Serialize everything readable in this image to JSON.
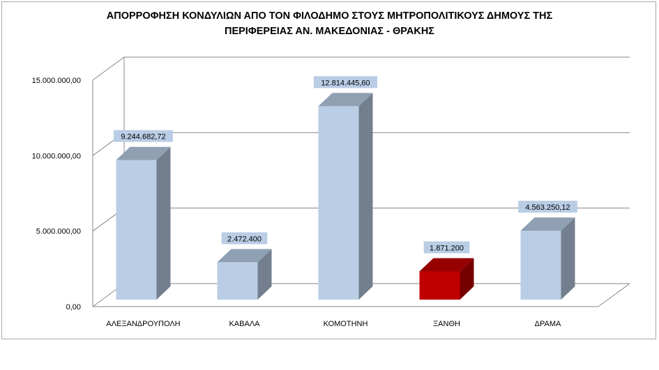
{
  "chart_data": {
    "type": "bar",
    "title": "ΑΠΟΡΡΟΦΗΣΗ ΚΟΝΔΥΛΙΩΝ ΑΠΟ ΤΟΝ ΦΙΛΟΔΗΜΟ ΣΤΟΥΣ ΜΗΤΡΟΠΟΛΙΤΙΚΟΥΣ ΔΗΜΟΥΣ ΤΗΣ ΠΕΡΙΦΕΡΕΙΑΣ ΑΝ. ΜΑΚΕΔΟΝΙΑΣ - ΘΡΑΚΗΣ",
    "title_lines": [
      "ΑΠΟΡΡΟΦΗΣΗ ΚΟΝΔΥΛΙΩΝ ΑΠΟ ΤΟΝ ΦΙΛΟΔΗΜΟ ΣΤΟΥΣ ΜΗΤΡΟΠΟΛΙΤΙΚΟΥΣ ΔΗΜΟΥΣ ΤΗΣ",
      "ΠΕΡΙΦΕΡΕΙΑΣ ΑΝ. ΜΑΚΕΔΟΝΙΑΣ - ΘΡΑΚΗΣ"
    ],
    "categories": [
      "ΑΛΕΞΑΝΔΡΟΥΠΟΛΗ",
      "ΚΑΒΑΛΑ",
      "ΚΟΜΟΤΗΝΗ",
      "ΞΑΝΘΗ",
      "ΔΡΑΜΑ"
    ],
    "values": [
      9244682.72,
      2472400,
      12814445.6,
      1871200,
      4563250.12
    ],
    "data_labels": [
      "9.244.682,72",
      "2.472.400",
      "12.814.445,60",
      "1.871.200",
      "4.563.250,12"
    ],
    "bar_colors": [
      "#b9cde5",
      "#b9cde5",
      "#b9cde5",
      "#c00000",
      "#b9cde5"
    ],
    "ylim": [
      0,
      15000000
    ],
    "yticks": [
      0,
      5000000,
      10000000,
      15000000
    ],
    "ytick_labels": [
      "0,00",
      "5.000.000,00",
      "10.000.000,00",
      "15.000.000,00"
    ],
    "xlabel": "",
    "ylabel": "",
    "grid": true,
    "legend": "none",
    "style": "3d-column"
  }
}
